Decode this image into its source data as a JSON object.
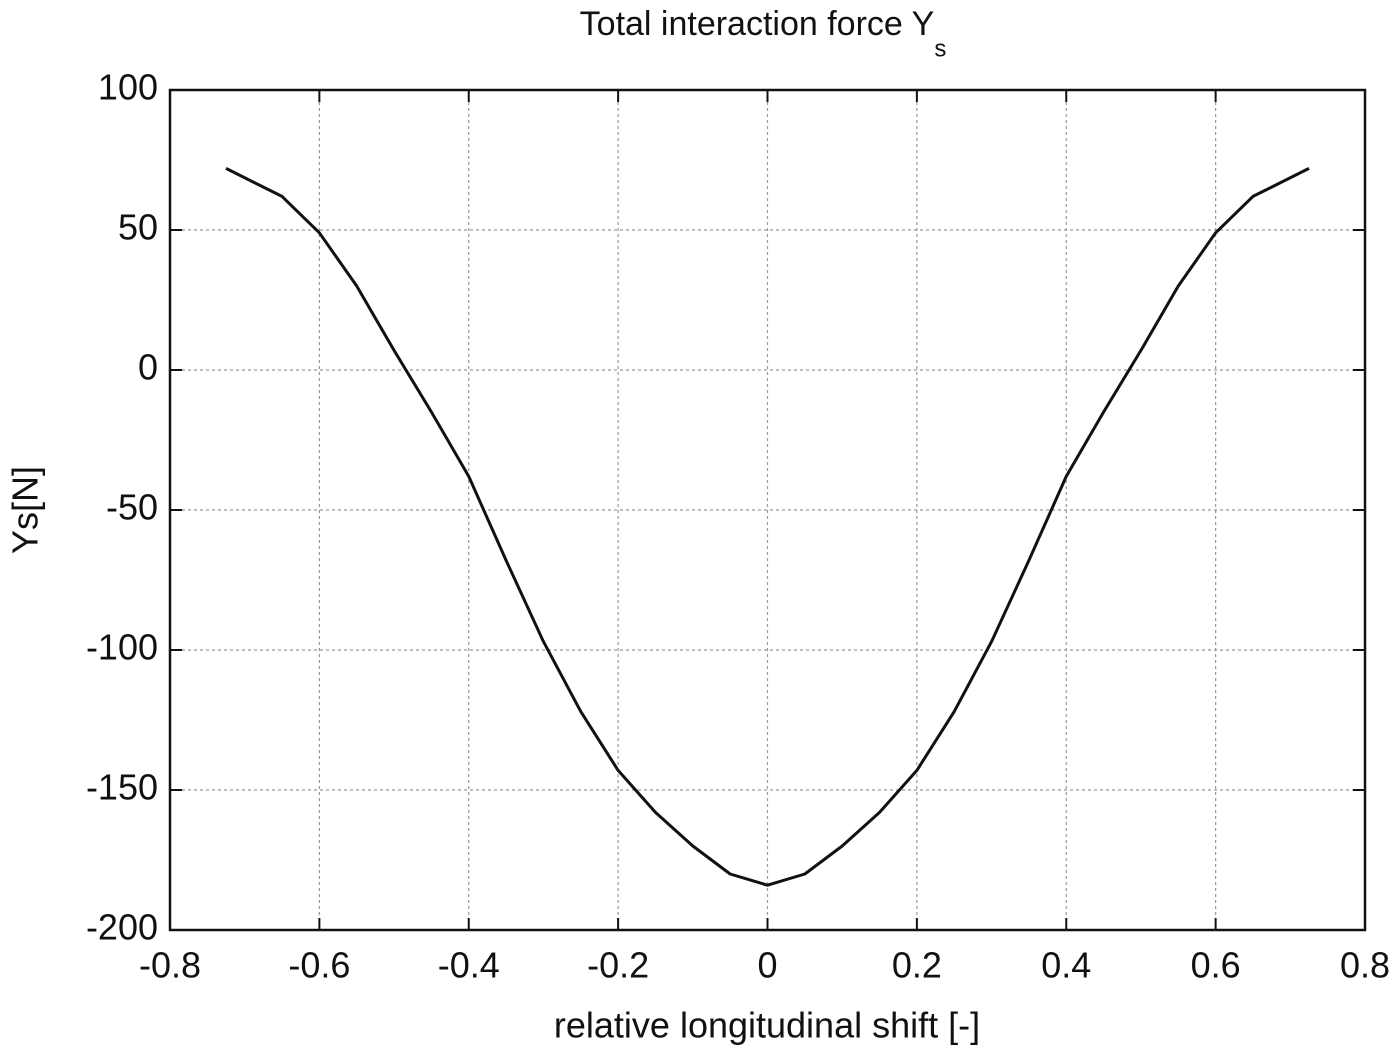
{
  "chart_data": {
    "type": "line",
    "title": "Total interaction force Y",
    "title_subscript": "s",
    "xlabel": "relative longitudinal shift [-]",
    "ylabel": "Ys[N]",
    "x": [
      -0.725,
      -0.65,
      -0.6,
      -0.55,
      -0.5,
      -0.45,
      -0.4,
      -0.35,
      -0.3,
      -0.25,
      -0.2,
      -0.15,
      -0.1,
      -0.05,
      0,
      0.05,
      0.1,
      0.15,
      0.2,
      0.25,
      0.3,
      0.35,
      0.4,
      0.45,
      0.5,
      0.55,
      0.6,
      0.65,
      0.725
    ],
    "series": [
      {
        "name": "Ys",
        "color": "#111111",
        "values": [
          72,
          62,
          49,
          30,
          7,
          -15,
          -38,
          -68,
          -97,
          -122,
          -143,
          -158,
          -170,
          -180,
          -184,
          -180,
          -170,
          -158,
          -143,
          -122,
          -97,
          -68,
          -38,
          -15,
          7,
          30,
          49,
          62,
          72
        ]
      }
    ],
    "xlim": [
      -0.8,
      0.8
    ],
    "xticks": [
      -0.8,
      -0.6,
      -0.4,
      -0.2,
      0,
      0.2,
      0.4,
      0.6,
      0.8
    ],
    "ylim": [
      -200,
      100
    ],
    "yticks": [
      -200,
      -150,
      -100,
      -50,
      0,
      50,
      100
    ],
    "grid": true
  }
}
